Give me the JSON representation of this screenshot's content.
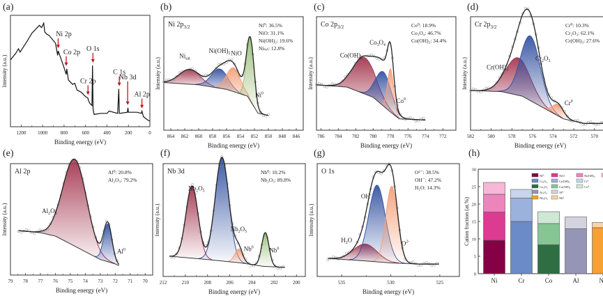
{
  "chart_data": [
    {
      "panel": "(a)",
      "type": "line",
      "title": "",
      "xlabel": "Binding energy (eV)",
      "ylabel": "Intensity (a.u.)",
      "xlim": [
        1300,
        0
      ],
      "xticks": [
        1200,
        1000,
        800,
        600,
        400,
        200,
        0
      ],
      "spectrum": [
        [
          1300,
          0.6
        ],
        [
          1250,
          0.66
        ],
        [
          1225,
          0.7
        ],
        [
          1210,
          0.67
        ],
        [
          1150,
          0.76
        ],
        [
          1100,
          0.84
        ],
        [
          1060,
          0.88
        ],
        [
          1030,
          0.91
        ],
        [
          1010,
          0.89
        ],
        [
          990,
          0.93
        ],
        [
          980,
          0.85
        ],
        [
          960,
          0.83
        ],
        [
          940,
          0.82
        ],
        [
          880,
          0.75
        ],
        [
          860,
          0.64
        ],
        [
          855,
          0.68
        ],
        [
          840,
          0.64
        ],
        [
          800,
          0.53
        ],
        [
          780,
          0.47
        ],
        [
          775,
          0.52
        ],
        [
          760,
          0.42
        ],
        [
          720,
          0.38
        ],
        [
          700,
          0.39
        ],
        [
          680,
          0.33
        ],
        [
          640,
          0.31
        ],
        [
          600,
          0.27
        ],
        [
          580,
          0.26
        ],
        [
          570,
          0.23
        ],
        [
          560,
          0.21
        ],
        [
          540,
          0.19
        ],
        [
          535,
          0.55
        ],
        [
          530,
          0.16
        ],
        [
          520,
          0.11
        ],
        [
          460,
          0.12
        ],
        [
          400,
          0.12
        ],
        [
          380,
          0.14
        ],
        [
          300,
          0.12
        ],
        [
          290,
          0.34
        ],
        [
          285,
          0.12
        ],
        [
          210,
          0.13
        ],
        [
          205,
          0.17
        ],
        [
          200,
          0.13
        ],
        [
          120,
          0.13
        ],
        [
          80,
          0.12
        ],
        [
          74,
          0.14
        ],
        [
          60,
          0.09
        ],
        [
          20,
          0.06
        ],
        [
          0,
          0.05
        ]
      ],
      "annotations": [
        {
          "label": "Ni 2p",
          "x": 855
        },
        {
          "label": "Co 2p",
          "x": 780
        },
        {
          "label": "Cr 2p",
          "x": 577
        },
        {
          "label": "O 1s",
          "x": 531
        },
        {
          "label": "C 1s",
          "x": 285
        },
        {
          "label": "Nb 3d",
          "x": 207
        },
        {
          "label": "Al 2p",
          "x": 74
        }
      ]
    },
    {
      "panel": "(b)",
      "type": "line",
      "title": "Ni 2p3/2",
      "title_main": "Ni 2p",
      "title_sub": "3/2",
      "xlabel": "Binding energy (eV)",
      "ylabel": "Intensity (a.u.)",
      "xlim": [
        865,
        845
      ],
      "xticks": [
        864,
        862,
        860,
        858,
        856,
        854,
        852,
        850,
        848,
        846
      ],
      "background": [
        [
          865,
          0.42
        ],
        [
          860,
          0.4
        ],
        [
          856,
          0.36
        ],
        [
          853,
          0.3
        ],
        [
          851.5,
          0.15
        ],
        [
          850,
          0.13
        ]
      ],
      "components": [
        {
          "name": "Ni_sat",
          "center": 861.3,
          "height": 0.13,
          "width": 1.5,
          "color": "#a4364f"
        },
        {
          "name": "Ni(OH)2",
          "center": 857.0,
          "height": 0.17,
          "width": 1.2,
          "color": "#3654a2"
        },
        {
          "name": "NiO",
          "center": 855.0,
          "height": 0.21,
          "width": 1.0,
          "color": "#f4a07a"
        },
        {
          "name": "Ni0",
          "center": 852.6,
          "height": 0.55,
          "width": 0.55,
          "color": "#9bbf7a"
        }
      ],
      "fractions": [
        "Ni⁰: 36.5%",
        "NiO: 31.1%",
        "Ni(OH)₂: 19.6%",
        "Niₛₐₜ: 12.8%"
      ],
      "labels": [
        {
          "text": "Ni",
          "sub": "sat",
          "x": 862
        },
        {
          "text": "Ni(OH)",
          "sub": "2",
          "x": 857
        },
        {
          "text": "NiO",
          "sub": "",
          "x": 854.6
        },
        {
          "text": "Ni",
          "sup": "0",
          "x": 851.3
        }
      ]
    },
    {
      "panel": "(c)",
      "type": "line",
      "title": "Co 2p3/2",
      "title_main": "Co 2p",
      "title_sub": "3/2",
      "xlabel": "Binding energy (eV)",
      "ylabel": "Intensity (a.u.)",
      "xlim": [
        786.5,
        770.5
      ],
      "xticks": [
        786,
        784,
        782,
        780,
        778,
        776,
        774,
        772
      ],
      "background": [
        [
          786.5,
          0.4
        ],
        [
          783,
          0.38
        ],
        [
          780,
          0.29
        ],
        [
          778,
          0.16
        ],
        [
          777,
          0.1
        ],
        [
          774,
          0.09
        ]
      ],
      "components": [
        {
          "name": "Co(OH)2",
          "center": 781.0,
          "height": 0.32,
          "width": 1.3,
          "color": "#a4364f"
        },
        {
          "name": "Co3O4",
          "center": 778.8,
          "height": 0.3,
          "width": 0.9,
          "color": "#3654a2"
        },
        {
          "name": "Co0",
          "center": 778.0,
          "height": 0.38,
          "width": 0.35,
          "color": "#f4a07a"
        }
      ],
      "fractions": [
        "Co⁰: 18.9%",
        "Co₃O₄: 46.7%",
        "Co(OH)₂: 34.4%"
      ],
      "labels": [
        {
          "text": "Co(OH)",
          "sub": "2",
          "x": 782.5
        },
        {
          "text": "Co",
          "sub": "3",
          "text2": "O",
          "sub2": "4",
          "x": 779.5
        },
        {
          "text": "Co",
          "sup": "0",
          "x": 776.8
        }
      ]
    },
    {
      "panel": "(d)",
      "type": "line",
      "title": "Cr 2p3/2",
      "title_main": "Cr 2p",
      "title_sub": "3/2",
      "xlabel": "Binding energy (eV)",
      "ylabel": "Intensity (a.u.)",
      "xlim": [
        582,
        568.5
      ],
      "xticks": [
        582,
        580,
        578,
        576,
        574,
        572,
        570
      ],
      "background": [
        [
          582,
          0.35
        ],
        [
          579,
          0.34
        ],
        [
          577,
          0.3
        ],
        [
          575,
          0.2
        ],
        [
          573,
          0.1
        ],
        [
          571,
          0.06
        ],
        [
          568.5,
          0.06
        ]
      ],
      "components": [
        {
          "name": "Cr(OH)3",
          "center": 577.4,
          "height": 0.33,
          "width": 1.2,
          "color": "#a4364f"
        },
        {
          "name": "Cr2O3",
          "center": 576.2,
          "height": 0.57,
          "width": 0.95,
          "color": "#3654a2"
        },
        {
          "name": "Cr0",
          "center": 573.5,
          "height": 0.1,
          "width": 0.55,
          "color": "#f4a07a"
        }
      ],
      "fractions": [
        "Cr⁰: 10.3%",
        "Cr₂O₃: 62.1%",
        "Cr(OH)₃: 27.6%"
      ],
      "labels": [
        {
          "text": "Cr(OH)",
          "sub": "3",
          "x": 579.4
        },
        {
          "text": "Cr",
          "sub": "2",
          "text2": "O",
          "sub2": "3",
          "x": 575
        },
        {
          "text": "Cr",
          "sup": "0",
          "x": 572.5
        }
      ]
    },
    {
      "panel": "(e)",
      "type": "line",
      "title": "Al 2p",
      "title_main": "Al 2p",
      "title_sub": "",
      "xlabel": "Binding energy (eV)",
      "ylabel": "Intensity (a.u.)",
      "xlim": [
        79,
        69.5
      ],
      "xticks": [
        79,
        78,
        77,
        76,
        75,
        74,
        73,
        72,
        71,
        70
      ],
      "background": [
        [
          78.5,
          0.4
        ],
        [
          77,
          0.38
        ],
        [
          76,
          0.35
        ],
        [
          75,
          0.28
        ],
        [
          74,
          0.21
        ],
        [
          73,
          0.14
        ],
        [
          72,
          0.1
        ],
        [
          71.7,
          0.08
        ]
      ],
      "components": [
        {
          "name": "Al2O3",
          "center": 74.7,
          "height": 0.78,
          "width": 0.8,
          "color": "#a4364f"
        },
        {
          "name": "Al0",
          "center": 72.5,
          "height": 0.34,
          "width": 0.28,
          "color": "#3654a2"
        }
      ],
      "fractions": [
        "Al⁰: 20.8%",
        "Al₂O₃: 79.2%"
      ],
      "labels": [
        {
          "text": "Al",
          "sub": "2",
          "text2": "O",
          "sub2": "3",
          "x": 76.4
        },
        {
          "text": "Al",
          "sup": "0",
          "x": 71.6
        }
      ]
    },
    {
      "panel": "(f)",
      "type": "line",
      "title": "Nb 3d",
      "title_main": "Nb 3d",
      "title_sub": "",
      "xlabel": "Binding energy (eV)",
      "ylabel": "Intensity (a.u.)",
      "xlim": [
        212,
        199.2
      ],
      "xticks": [
        212,
        210,
        208,
        206,
        204,
        202,
        200
      ],
      "background": [
        [
          211.5,
          0.18
        ],
        [
          208,
          0.15
        ],
        [
          205,
          0.12
        ],
        [
          203,
          0.09
        ],
        [
          201,
          0.08
        ]
      ],
      "components": [
        {
          "name": "Nb2O5 3d3/2",
          "center": 209.4,
          "height": 0.64,
          "width": 0.55,
          "color": "#a4364f"
        },
        {
          "name": "Nb2O5 3d5/2",
          "center": 206.7,
          "height": 0.92,
          "width": 0.62,
          "color": "#3654a2"
        },
        {
          "name": "Nb0 3d5/2",
          "center": 205.2,
          "height": 0.12,
          "width": 0.35,
          "color": "#f4a07a"
        },
        {
          "name": "Nb0 3d3/2",
          "center": 202.8,
          "height": 0.3,
          "width": 0.33,
          "color": "#9bbf7a"
        }
      ],
      "fractions": [
        "Nb⁰: 10.2%",
        "Nb₂O₅: 89.8%"
      ],
      "labels": [
        {
          "text": "Nb",
          "sub": "2",
          "text2": "O",
          "sub2": "5",
          "x": 209
        },
        {
          "text": "Nb",
          "sub": "2",
          "text2": "O",
          "sub2": "5",
          "x": 205.2
        },
        {
          "text": "Nb",
          "sup": "0",
          "x": 204.3
        },
        {
          "text": "Nb",
          "sup": "0",
          "x": 202.0
        }
      ]
    },
    {
      "panel": "(g)",
      "type": "line",
      "title": "O 1s",
      "title_main": "O 1s",
      "title_sub": "",
      "xlabel": "Binding energy (eV)",
      "ylabel": "Intensity (a.u.)",
      "xlim": [
        537.5,
        523
      ],
      "xticks": [
        535,
        530,
        525
      ],
      "background": [
        [
          536.5,
          0.16
        ],
        [
          533,
          0.14
        ],
        [
          530,
          0.12
        ],
        [
          527,
          0.11
        ],
        [
          525,
          0.11
        ]
      ],
      "components": [
        {
          "name": "H2O",
          "center": 532.6,
          "height": 0.15,
          "width": 1.2,
          "color": "#a4364f"
        },
        {
          "name": "OH-",
          "center": 531.4,
          "height": 0.68,
          "width": 0.85,
          "color": "#3654a2"
        },
        {
          "name": "O2-",
          "center": 529.9,
          "height": 0.68,
          "width": 0.6,
          "color": "#f4a07a"
        }
      ],
      "fractions": [
        "O²⁻: 38.5%",
        "OH⁻: 47.2%",
        "H₂O: 14.3%"
      ],
      "labels": [
        {
          "text": "OH",
          "sup": "-",
          "x": 532.5
        },
        {
          "text": "O",
          "sup": "2-",
          "x": 528.5
        },
        {
          "text": "H",
          "sub": "2",
          "text2": "O",
          "x": 534.5
        }
      ]
    },
    {
      "panel": "(h)",
      "type": "bar",
      "stacked": true,
      "title": "",
      "xlabel": "",
      "ylabel": "Cation fraction (at.%)",
      "ylim": [
        0,
        30
      ],
      "yticks": [
        0,
        5,
        10,
        15,
        20,
        25,
        30
      ],
      "categories": [
        "Ni",
        "Cr",
        "Co",
        "Al",
        "Nb"
      ],
      "stacks": [
        {
          "category": "Ni",
          "segments": [
            {
              "name": "Ni⁰",
              "value": 9.6,
              "color": "#850045"
            },
            {
              "name": "NiO",
              "value": 8.1,
              "color": "#dd3a92"
            },
            {
              "name": "Ni(OH)₂",
              "value": 5.1,
              "color": "#ec85bb"
            },
            {
              "name": "Niₛₐₜ",
              "value": 3.4,
              "color": "#f6b8d6"
            }
          ]
        },
        {
          "category": "Cr",
          "segments": [
            {
              "name": "Cr₂O₃",
              "value": 15.0,
              "color": "#6b8ac8"
            },
            {
              "name": "Cr(OH)₃",
              "value": 6.7,
              "color": "#9ab2dc"
            },
            {
              "name": "Cr⁰",
              "value": 2.5,
              "color": "#c8d5ec"
            }
          ]
        },
        {
          "category": "Co",
          "segments": [
            {
              "name": "Co₃O₄",
              "value": 8.3,
              "color": "#2f6e42"
            },
            {
              "name": "Co(OH)₂",
              "value": 6.1,
              "color": "#86c695"
            },
            {
              "name": "Co⁰",
              "value": 3.4,
              "color": "#cfe8d5"
            }
          ]
        },
        {
          "category": "Al",
          "segments": [
            {
              "name": "Al₂O₃",
              "value": 12.9,
              "color": "#9595b8"
            },
            {
              "name": "Al⁰",
              "value": 3.4,
              "color": "#d3d3e0"
            }
          ]
        },
        {
          "category": "Nb",
          "segments": [
            {
              "name": "Nb₂O₅",
              "value": 13.2,
              "color": "#f7a033"
            },
            {
              "name": "Nb⁰",
              "value": 1.5,
              "color": "#fbd3a2"
            }
          ]
        }
      ],
      "legend": {
        "placement": "top-right",
        "rows": [
          [
            {
              "label": "Ni⁰",
              "color": "#850045"
            },
            {
              "label": "NiO",
              "color": "#dd3a92"
            },
            {
              "label": "Ni(OH)₂",
              "color": "#ec85bb"
            },
            {
              "label": "Niₛₐₜ",
              "color": "#f6b8d6"
            }
          ],
          [
            {
              "label": "Cr₂O₃",
              "color": "#6b8ac8"
            },
            {
              "label": "Cr(OH)₃",
              "color": "#9ab2dc"
            },
            {
              "label": "Cr⁰",
              "color": "#c8d5ec"
            }
          ],
          [
            {
              "label": "Co₃O₄",
              "color": "#2f6e42"
            },
            {
              "label": "Co(OH)₂",
              "color": "#86c695"
            },
            {
              "label": "Co⁰",
              "color": "#cfe8d5"
            }
          ],
          [
            {
              "label": "Al₂O₃",
              "color": "#9595b8"
            },
            {
              "label": "Al⁰",
              "color": "#d3d3e0"
            }
          ],
          [
            {
              "label": "Nb₂O₅",
              "color": "#f7a033"
            },
            {
              "label": "Nb⁰",
              "color": "#fbd3a2"
            }
          ]
        ]
      }
    }
  ],
  "panel_letters": [
    "(a)",
    "(b)",
    "(c)",
    "(d)",
    "(e)",
    "(f)",
    "(g)",
    "(h)"
  ],
  "colors": {
    "axis": "#333333",
    "spectrum": "#111111",
    "arrow": "#c0161c",
    "data_points": "#888888"
  }
}
